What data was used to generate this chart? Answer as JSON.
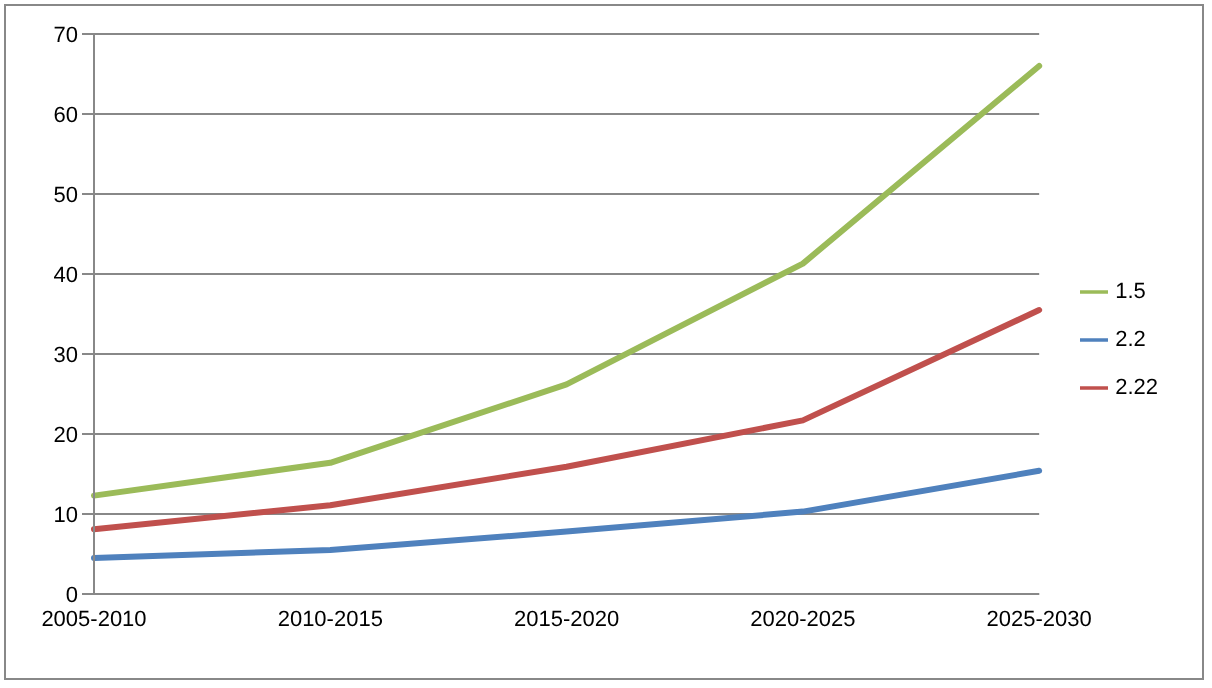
{
  "chart_data": {
    "type": "line",
    "categories": [
      "2005-2010",
      "2010-2015",
      "2015-2020",
      "2020-2025",
      "2025-2030"
    ],
    "series": [
      {
        "name": "1.5",
        "color": "#9bbb59",
        "values": [
          12.3,
          16.4,
          26.2,
          41.3,
          66
        ]
      },
      {
        "name": "2.22",
        "color": "#c0504d",
        "values": [
          8.1,
          11.1,
          15.9,
          21.7,
          35.5
        ]
      },
      {
        "name": "2.2",
        "color": "#4f81bd",
        "values": [
          4.5,
          5.5,
          7.8,
          10.3,
          15.4
        ]
      }
    ],
    "ylim": [
      0,
      70
    ],
    "yticks": [
      0,
      10,
      20,
      30,
      40,
      50,
      60,
      70
    ],
    "grid": "y",
    "legend": "right",
    "marker": "none",
    "line_style": "solid"
  }
}
